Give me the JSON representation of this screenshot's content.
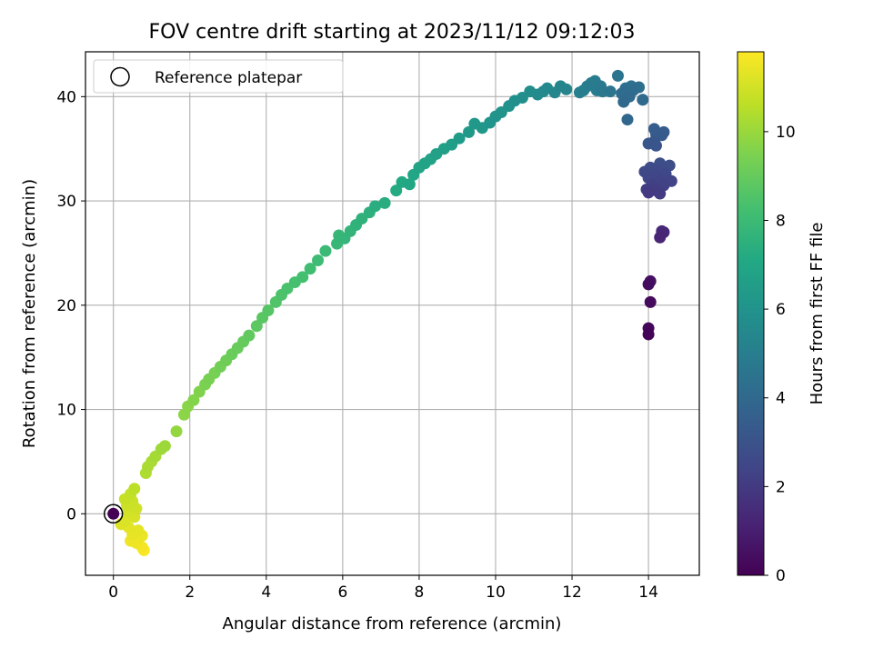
{
  "chart_data": {
    "type": "scatter",
    "title": "FOV centre drift starting at 2023/11/12 09:12:03",
    "xlabel": "Angular distance from reference (arcmin)",
    "ylabel": "Rotation from reference (arcmin)",
    "xlim": [
      -0.73,
      15.33
    ],
    "ylim": [
      -5.9,
      44.3
    ],
    "xticks": [
      0,
      2,
      4,
      6,
      8,
      10,
      12,
      14
    ],
    "yticks": [
      0,
      10,
      20,
      30,
      40
    ],
    "grid": true,
    "legend": {
      "placement": "top-left",
      "entries": [
        "Reference platepar"
      ]
    },
    "reference_point": {
      "x": 0,
      "y": 0,
      "label": "Reference platepar"
    },
    "colorbar": {
      "label": "Hours from first FF file",
      "colormap": "viridis",
      "range": [
        0,
        11.8
      ],
      "ticks": [
        0,
        2,
        4,
        6,
        8,
        10
      ]
    },
    "series": [
      {
        "color_by": "hours",
        "points": [
          {
            "x": 0.0,
            "y": 0.0,
            "c": 0.05
          },
          {
            "x": 14.0,
            "y": 17.2,
            "c": 0.1
          },
          {
            "x": 14.0,
            "y": 17.8,
            "c": 0.2
          },
          {
            "x": 14.05,
            "y": 20.3,
            "c": 0.3
          },
          {
            "x": 14.0,
            "y": 22.0,
            "c": 0.4
          },
          {
            "x": 14.05,
            "y": 22.3,
            "c": 0.5
          },
          {
            "x": 14.3,
            "y": 26.5,
            "c": 1.2
          },
          {
            "x": 14.4,
            "y": 27.0,
            "c": 1.3
          },
          {
            "x": 14.35,
            "y": 27.1,
            "c": 1.35
          },
          {
            "x": 14.0,
            "y": 30.8,
            "c": 2.0
          },
          {
            "x": 14.3,
            "y": 30.7,
            "c": 2.05
          },
          {
            "x": 14.2,
            "y": 31.0,
            "c": 2.1
          },
          {
            "x": 13.95,
            "y": 31.1,
            "c": 2.15
          },
          {
            "x": 14.15,
            "y": 31.3,
            "c": 2.2
          },
          {
            "x": 14.4,
            "y": 31.5,
            "c": 2.25
          },
          {
            "x": 14.1,
            "y": 31.6,
            "c": 2.3
          },
          {
            "x": 14.6,
            "y": 31.9,
            "c": 2.35
          },
          {
            "x": 14.3,
            "y": 32.0,
            "c": 2.4
          },
          {
            "x": 14.0,
            "y": 32.2,
            "c": 2.45
          },
          {
            "x": 14.2,
            "y": 32.4,
            "c": 2.5
          },
          {
            "x": 14.45,
            "y": 32.6,
            "c": 2.55
          },
          {
            "x": 13.9,
            "y": 32.8,
            "c": 2.6
          },
          {
            "x": 14.15,
            "y": 33.0,
            "c": 2.65
          },
          {
            "x": 14.35,
            "y": 33.1,
            "c": 2.7
          },
          {
            "x": 14.05,
            "y": 33.2,
            "c": 2.75
          },
          {
            "x": 14.55,
            "y": 33.4,
            "c": 2.8
          },
          {
            "x": 14.3,
            "y": 33.6,
            "c": 2.85
          },
          {
            "x": 14.2,
            "y": 35.3,
            "c": 3.1
          },
          {
            "x": 14.0,
            "y": 35.5,
            "c": 3.15
          },
          {
            "x": 14.15,
            "y": 35.7,
            "c": 3.2
          },
          {
            "x": 14.35,
            "y": 36.3,
            "c": 3.3
          },
          {
            "x": 14.2,
            "y": 36.4,
            "c": 3.35
          },
          {
            "x": 14.4,
            "y": 36.6,
            "c": 3.4
          },
          {
            "x": 14.15,
            "y": 36.9,
            "c": 3.45
          },
          {
            "x": 13.45,
            "y": 37.8,
            "c": 3.9
          },
          {
            "x": 13.35,
            "y": 39.5,
            "c": 4.0
          },
          {
            "x": 13.5,
            "y": 40.0,
            "c": 4.05
          },
          {
            "x": 13.85,
            "y": 39.7,
            "c": 4.1
          },
          {
            "x": 13.3,
            "y": 40.3,
            "c": 4.15
          },
          {
            "x": 13.6,
            "y": 40.6,
            "c": 4.2
          },
          {
            "x": 13.4,
            "y": 40.8,
            "c": 4.25
          },
          {
            "x": 13.75,
            "y": 40.9,
            "c": 4.3
          },
          {
            "x": 13.55,
            "y": 41.0,
            "c": 4.35
          },
          {
            "x": 13.2,
            "y": 42.0,
            "c": 4.5
          },
          {
            "x": 13.0,
            "y": 40.5,
            "c": 4.6
          },
          {
            "x": 12.8,
            "y": 40.5,
            "c": 4.7
          },
          {
            "x": 12.75,
            "y": 41.0,
            "c": 4.8
          },
          {
            "x": 12.65,
            "y": 40.6,
            "c": 4.85
          },
          {
            "x": 12.5,
            "y": 41.3,
            "c": 4.9
          },
          {
            "x": 12.6,
            "y": 41.5,
            "c": 4.95
          },
          {
            "x": 12.4,
            "y": 41.0,
            "c": 5.0
          },
          {
            "x": 12.3,
            "y": 40.6,
            "c": 5.05
          },
          {
            "x": 12.2,
            "y": 40.4,
            "c": 5.1
          },
          {
            "x": 11.85,
            "y": 40.7,
            "c": 5.3
          },
          {
            "x": 11.7,
            "y": 41.0,
            "c": 5.35
          },
          {
            "x": 11.55,
            "y": 40.4,
            "c": 5.4
          },
          {
            "x": 11.35,
            "y": 40.8,
            "c": 5.5
          },
          {
            "x": 11.25,
            "y": 40.5,
            "c": 5.55
          },
          {
            "x": 11.1,
            "y": 40.2,
            "c": 5.6
          },
          {
            "x": 10.9,
            "y": 40.5,
            "c": 5.7
          },
          {
            "x": 10.7,
            "y": 39.9,
            "c": 5.8
          },
          {
            "x": 10.5,
            "y": 39.6,
            "c": 5.85
          },
          {
            "x": 10.35,
            "y": 39.1,
            "c": 5.9
          },
          {
            "x": 10.15,
            "y": 38.5,
            "c": 6.0
          },
          {
            "x": 10.0,
            "y": 38.1,
            "c": 6.05
          },
          {
            "x": 9.85,
            "y": 37.5,
            "c": 6.1
          },
          {
            "x": 9.65,
            "y": 37.0,
            "c": 6.2
          },
          {
            "x": 9.45,
            "y": 37.4,
            "c": 6.25
          },
          {
            "x": 9.3,
            "y": 36.6,
            "c": 6.3
          },
          {
            "x": 9.05,
            "y": 36.0,
            "c": 6.4
          },
          {
            "x": 8.85,
            "y": 35.4,
            "c": 6.5
          },
          {
            "x": 8.65,
            "y": 35.0,
            "c": 6.6
          },
          {
            "x": 8.45,
            "y": 34.5,
            "c": 6.7
          },
          {
            "x": 8.3,
            "y": 34.0,
            "c": 6.75
          },
          {
            "x": 8.15,
            "y": 33.6,
            "c": 6.8
          },
          {
            "x": 8.0,
            "y": 33.2,
            "c": 6.9
          },
          {
            "x": 7.85,
            "y": 32.5,
            "c": 7.0
          },
          {
            "x": 7.75,
            "y": 31.6,
            "c": 7.05
          },
          {
            "x": 7.55,
            "y": 31.8,
            "c": 7.1
          },
          {
            "x": 7.4,
            "y": 31.0,
            "c": 7.2
          },
          {
            "x": 7.1,
            "y": 29.8,
            "c": 7.3
          },
          {
            "x": 6.85,
            "y": 29.5,
            "c": 7.4
          },
          {
            "x": 6.7,
            "y": 28.9,
            "c": 7.5
          },
          {
            "x": 6.5,
            "y": 28.3,
            "c": 7.55
          },
          {
            "x": 6.35,
            "y": 27.7,
            "c": 7.6
          },
          {
            "x": 6.2,
            "y": 27.1,
            "c": 7.7
          },
          {
            "x": 6.05,
            "y": 26.4,
            "c": 7.75
          },
          {
            "x": 5.9,
            "y": 26.7,
            "c": 7.8
          },
          {
            "x": 5.85,
            "y": 25.9,
            "c": 7.85
          },
          {
            "x": 5.55,
            "y": 25.2,
            "c": 7.95
          },
          {
            "x": 5.35,
            "y": 24.3,
            "c": 8.05
          },
          {
            "x": 5.15,
            "y": 23.5,
            "c": 8.15
          },
          {
            "x": 4.95,
            "y": 22.7,
            "c": 8.25
          },
          {
            "x": 4.75,
            "y": 22.2,
            "c": 8.3
          },
          {
            "x": 4.55,
            "y": 21.6,
            "c": 8.4
          },
          {
            "x": 4.4,
            "y": 21.0,
            "c": 8.45
          },
          {
            "x": 4.25,
            "y": 20.3,
            "c": 8.55
          },
          {
            "x": 4.05,
            "y": 19.5,
            "c": 8.65
          },
          {
            "x": 3.9,
            "y": 18.8,
            "c": 8.75
          },
          {
            "x": 3.75,
            "y": 18.0,
            "c": 8.8
          },
          {
            "x": 3.55,
            "y": 17.1,
            "c": 8.9
          },
          {
            "x": 3.4,
            "y": 16.5,
            "c": 9.0
          },
          {
            "x": 3.25,
            "y": 15.9,
            "c": 9.05
          },
          {
            "x": 3.1,
            "y": 15.3,
            "c": 9.1
          },
          {
            "x": 2.95,
            "y": 14.7,
            "c": 9.2
          },
          {
            "x": 2.8,
            "y": 14.1,
            "c": 9.25
          },
          {
            "x": 2.65,
            "y": 13.5,
            "c": 9.35
          },
          {
            "x": 2.5,
            "y": 12.9,
            "c": 9.4
          },
          {
            "x": 2.4,
            "y": 12.4,
            "c": 9.45
          },
          {
            "x": 2.25,
            "y": 11.7,
            "c": 9.55
          },
          {
            "x": 2.1,
            "y": 10.9,
            "c": 9.6
          },
          {
            "x": 1.95,
            "y": 10.3,
            "c": 9.7
          },
          {
            "x": 1.85,
            "y": 9.5,
            "c": 9.75
          },
          {
            "x": 1.65,
            "y": 7.9,
            "c": 9.9
          },
          {
            "x": 1.35,
            "y": 6.5,
            "c": 10.05
          },
          {
            "x": 1.25,
            "y": 6.2,
            "c": 10.1
          },
          {
            "x": 1.1,
            "y": 5.5,
            "c": 10.2
          },
          {
            "x": 1.0,
            "y": 5.0,
            "c": 10.25
          },
          {
            "x": 0.9,
            "y": 4.5,
            "c": 10.3
          },
          {
            "x": 0.85,
            "y": 3.9,
            "c": 10.35
          },
          {
            "x": 0.55,
            "y": 2.4,
            "c": 10.6
          },
          {
            "x": 0.45,
            "y": 1.9,
            "c": 10.7
          },
          {
            "x": 0.3,
            "y": 1.4,
            "c": 10.8
          },
          {
            "x": 0.5,
            "y": 1.2,
            "c": 10.85
          },
          {
            "x": 0.35,
            "y": 0.8,
            "c": 10.9
          },
          {
            "x": 0.6,
            "y": 0.5,
            "c": 10.95
          },
          {
            "x": 0.4,
            "y": 0.2,
            "c": 11.0
          },
          {
            "x": 0.55,
            "y": -0.3,
            "c": 11.1
          },
          {
            "x": 0.3,
            "y": -0.7,
            "c": 11.15
          },
          {
            "x": 0.2,
            "y": -1.0,
            "c": 11.2
          },
          {
            "x": 0.4,
            "y": -1.3,
            "c": 11.3
          },
          {
            "x": 0.65,
            "y": -1.6,
            "c": 11.35
          },
          {
            "x": 0.5,
            "y": -2.0,
            "c": 11.4
          },
          {
            "x": 0.75,
            "y": -2.1,
            "c": 11.45
          },
          {
            "x": 0.45,
            "y": -2.6,
            "c": 11.5
          },
          {
            "x": 0.6,
            "y": -2.8,
            "c": 11.55
          },
          {
            "x": 0.75,
            "y": -3.2,
            "c": 11.65
          },
          {
            "x": 0.8,
            "y": -3.5,
            "c": 11.75
          }
        ]
      }
    ]
  }
}
